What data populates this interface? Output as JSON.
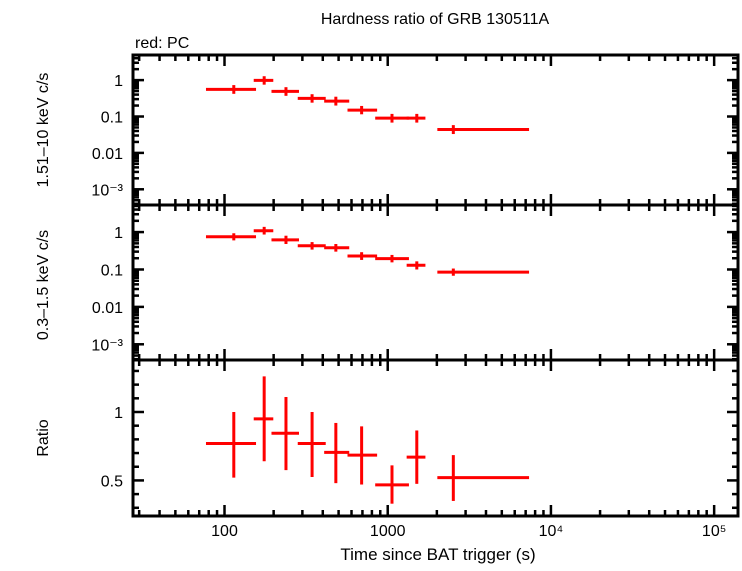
{
  "chart_data": [
    {
      "type": "scatter",
      "panel": "hard",
      "title": "Hardness ratio of GRB 130511A",
      "subtitle": "red: PC",
      "ylabel": "1.51–10 keV c/s",
      "yscale": "log",
      "ylim": [
        0.00037,
        4.9
      ],
      "yticks": [
        1,
        0.1,
        0.01,
        0.001
      ],
      "ytick_labels": [
        "1",
        "0.1",
        "0.01",
        "10⁻³"
      ],
      "color": "#ff0000",
      "points": [
        {
          "x": 114,
          "xlo": 77,
          "xhi": 156,
          "y": 0.555,
          "ylo": 0.42,
          "yhi": 0.73
        },
        {
          "x": 175,
          "xlo": 151,
          "xhi": 199,
          "y": 0.98,
          "ylo": 0.75,
          "yhi": 1.28
        },
        {
          "x": 238,
          "xlo": 194,
          "xhi": 286,
          "y": 0.49,
          "ylo": 0.37,
          "yhi": 0.64
        },
        {
          "x": 344,
          "xlo": 281,
          "xhi": 417,
          "y": 0.314,
          "ylo": 0.24,
          "yhi": 0.41
        },
        {
          "x": 481,
          "xlo": 408,
          "xhi": 581,
          "y": 0.265,
          "ylo": 0.2,
          "yhi": 0.35
        },
        {
          "x": 692,
          "xlo": 567,
          "xhi": 861,
          "y": 0.15,
          "ylo": 0.115,
          "yhi": 0.195
        },
        {
          "x": 1062,
          "xlo": 838,
          "xhi": 1349,
          "y": 0.09,
          "ylo": 0.068,
          "yhi": 0.118
        },
        {
          "x": 1507,
          "xlo": 1306,
          "xhi": 1702,
          "y": 0.09,
          "ylo": 0.068,
          "yhi": 0.118
        },
        {
          "x": 2523,
          "xlo": 2014,
          "xhi": 7345,
          "y": 0.044,
          "ylo": 0.033,
          "yhi": 0.058
        }
      ]
    },
    {
      "type": "scatter",
      "panel": "soft",
      "ylabel": "0.3–1.5 keV c/s",
      "yscale": "log",
      "ylim": [
        0.00038,
        5.3
      ],
      "yticks": [
        1,
        0.1,
        0.01,
        0.001
      ],
      "ytick_labels": [
        "1",
        "0.1",
        "0.01",
        "10⁻³"
      ],
      "color": "#ff0000",
      "points": [
        {
          "x": 114,
          "xlo": 77,
          "xhi": 156,
          "y": 0.75,
          "ylo": 0.6,
          "yhi": 0.93
        },
        {
          "x": 175,
          "xlo": 151,
          "xhi": 199,
          "y": 1.09,
          "ylo": 0.86,
          "yhi": 1.38
        },
        {
          "x": 238,
          "xlo": 194,
          "xhi": 286,
          "y": 0.62,
          "ylo": 0.48,
          "yhi": 0.8
        },
        {
          "x": 344,
          "xlo": 281,
          "xhi": 417,
          "y": 0.43,
          "ylo": 0.34,
          "yhi": 0.54
        },
        {
          "x": 481,
          "xlo": 408,
          "xhi": 581,
          "y": 0.38,
          "ylo": 0.3,
          "yhi": 0.48
        },
        {
          "x": 692,
          "xlo": 567,
          "xhi": 861,
          "y": 0.23,
          "ylo": 0.18,
          "yhi": 0.29
        },
        {
          "x": 1062,
          "xlo": 838,
          "xhi": 1349,
          "y": 0.195,
          "ylo": 0.155,
          "yhi": 0.245
        },
        {
          "x": 1507,
          "xlo": 1306,
          "xhi": 1702,
          "y": 0.13,
          "ylo": 0.1,
          "yhi": 0.165
        },
        {
          "x": 2523,
          "xlo": 2014,
          "xhi": 7345,
          "y": 0.085,
          "ylo": 0.068,
          "yhi": 0.106
        }
      ]
    },
    {
      "type": "scatter",
      "panel": "ratio",
      "ylabel": "Ratio",
      "xlabel": "Time since BAT trigger (s)",
      "xscale": "log",
      "xlim": [
        27.5,
        140000
      ],
      "xticks": [
        100,
        1000,
        10000,
        100000
      ],
      "xtick_labels": [
        "100",
        "1000",
        "10⁴",
        "10⁵"
      ],
      "yscale": "linear",
      "ylim": [
        0.24,
        1.38
      ],
      "yticks": [
        1,
        0.5
      ],
      "ytick_labels": [
        "1",
        "0.5"
      ],
      "color": "#ff0000",
      "points": [
        {
          "x": 114,
          "xlo": 77,
          "xhi": 156,
          "y": 0.77,
          "ylo": 0.52,
          "yhi": 1.0
        },
        {
          "x": 175,
          "xlo": 151,
          "xhi": 199,
          "y": 0.95,
          "ylo": 0.64,
          "yhi": 1.26
        },
        {
          "x": 238,
          "xlo": 194,
          "xhi": 286,
          "y": 0.845,
          "ylo": 0.575,
          "yhi": 1.11
        },
        {
          "x": 344,
          "xlo": 281,
          "xhi": 417,
          "y": 0.77,
          "ylo": 0.525,
          "yhi": 1.0
        },
        {
          "x": 481,
          "xlo": 408,
          "xhi": 581,
          "y": 0.705,
          "ylo": 0.48,
          "yhi": 0.92
        },
        {
          "x": 692,
          "xlo": 567,
          "xhi": 861,
          "y": 0.685,
          "ylo": 0.47,
          "yhi": 0.895
        },
        {
          "x": 1062,
          "xlo": 838,
          "xhi": 1349,
          "y": 0.467,
          "ylo": 0.33,
          "yhi": 0.61
        },
        {
          "x": 1507,
          "xlo": 1306,
          "xhi": 1702,
          "y": 0.67,
          "ylo": 0.475,
          "yhi": 0.865
        },
        {
          "x": 2523,
          "xlo": 2014,
          "xhi": 7345,
          "y": 0.52,
          "ylo": 0.35,
          "yhi": 0.685
        }
      ]
    }
  ]
}
